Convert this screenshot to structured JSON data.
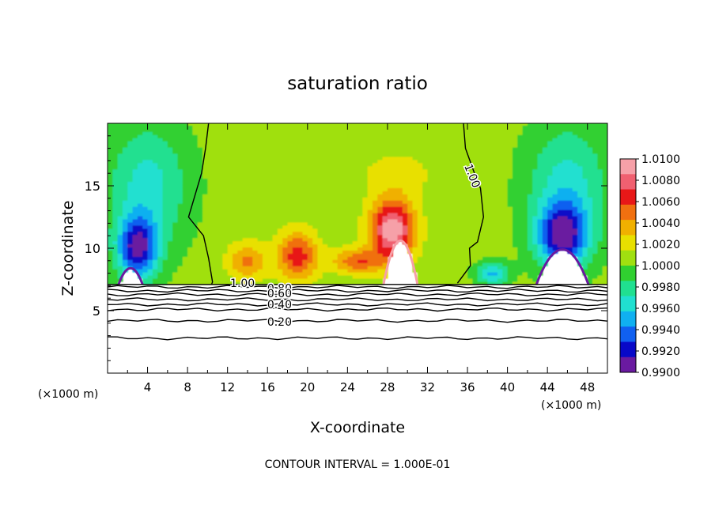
{
  "chart_data": {
    "type": "heatmap",
    "title": "saturation ratio",
    "xlabel": "X-coordinate",
    "ylabel": "Z-coordinate",
    "x_unit_left": "(×1000 m)",
    "x_unit_right": "(×1000 m)",
    "footer": "CONTOUR INTERVAL = 1.000E-01",
    "xlim": [
      0,
      50
    ],
    "ylim": [
      0,
      20
    ],
    "x_ticks": [
      4,
      8,
      12,
      16,
      20,
      24,
      28,
      32,
      36,
      40,
      44,
      48
    ],
    "y_ticks": [
      5,
      10,
      15
    ],
    "colorbar": {
      "labels": [
        "1.0100",
        "1.0080",
        "1.0060",
        "1.0040",
        "1.0020",
        "1.0000",
        "0.9980",
        "0.9960",
        "0.9940",
        "0.9920",
        "0.9900"
      ],
      "levels": [
        1.01,
        1.008,
        1.006,
        1.004,
        1.002,
        1.0,
        0.998,
        0.996,
        0.994,
        0.992,
        0.99
      ],
      "colors_top_to_bottom": [
        "#f6a0a8",
        "#f06070",
        "#e81818",
        "#f07010",
        "#f0b000",
        "#e8e000",
        "#a0e010",
        "#30d030",
        "#20e090",
        "#20e0d0",
        "#10b0f0",
        "#1060f0",
        "#0808c8",
        "#6a1aa0"
      ]
    },
    "contour_labels": [
      {
        "text": "1.00",
        "x": 13.5,
        "z": 7.2
      },
      {
        "text": "1.00",
        "x": 36.5,
        "z": 15.8
      },
      {
        "text": "0.80",
        "x": 17.2,
        "z": 6.8
      },
      {
        "text": "0.60",
        "x": 17.2,
        "z": 6.4
      },
      {
        "text": "0.40",
        "x": 17.2,
        "z": 5.5
      },
      {
        "text": "0.20",
        "x": 17.2,
        "z": 4.1
      }
    ],
    "lower_contours_z": [
      6.9,
      6.6,
      6.3,
      5.9,
      5.5,
      5.1,
      4.2,
      2.8
    ],
    "cloud_base_z": 7.1,
    "contour_1_left": [
      [
        10.1,
        20
      ],
      [
        9.8,
        18
      ],
      [
        9.4,
        16
      ],
      [
        8.1,
        12.5
      ],
      [
        9.6,
        11
      ],
      [
        10.1,
        9.2
      ],
      [
        10.5,
        7.3
      ],
      [
        10.4,
        7.1
      ]
    ],
    "contour_1_right": [
      [
        35.6,
        20
      ],
      [
        35.8,
        18
      ],
      [
        36.7,
        16
      ],
      [
        37.3,
        14.8
      ],
      [
        37.6,
        12.5
      ],
      [
        37.0,
        10.5
      ],
      [
        36.2,
        10.0
      ],
      [
        36.3,
        8.6
      ],
      [
        35.0,
        7.2
      ]
    ],
    "fields": {
      "background_value": 1.0005,
      "blobs": [
        {
          "x": 28.5,
          "z": 11.5,
          "sx": 2.2,
          "sz": 2.4,
          "a": 0.0095
        },
        {
          "x": 25.0,
          "z": 9.0,
          "sx": 2.5,
          "sz": 1.0,
          "a": 0.005
        },
        {
          "x": 19.0,
          "z": 9.4,
          "sx": 2.0,
          "sz": 2.0,
          "a": 0.006
        },
        {
          "x": 14.0,
          "z": 9.0,
          "sx": 2.0,
          "sz": 1.5,
          "a": 0.004
        },
        {
          "x": 29.0,
          "z": 16.0,
          "sx": 4.0,
          "sz": 2.0,
          "a": 0.0015
        },
        {
          "x": 3.0,
          "z": 10.0,
          "sx": 2.0,
          "sz": 2.5,
          "a": -0.009
        },
        {
          "x": 45.5,
          "z": 11.0,
          "sx": 2.5,
          "sz": 2.5,
          "a": -0.009
        },
        {
          "x": 4.0,
          "z": 15.0,
          "sx": 4.0,
          "sz": 5.0,
          "a": -0.004
        },
        {
          "x": 46.0,
          "z": 15.0,
          "sx": 4.0,
          "sz": 5.0,
          "a": -0.004
        },
        {
          "x": 38.5,
          "z": 8.0,
          "sx": 1.6,
          "sz": 0.9,
          "a": -0.005
        }
      ],
      "subsat_humps": [
        {
          "x": 29.3,
          "h": 10.6,
          "w": 1.7
        },
        {
          "x": 2.3,
          "h": 8.4,
          "w": 1.2
        },
        {
          "x": 45.5,
          "h": 9.9,
          "w": 2.6
        }
      ]
    }
  }
}
